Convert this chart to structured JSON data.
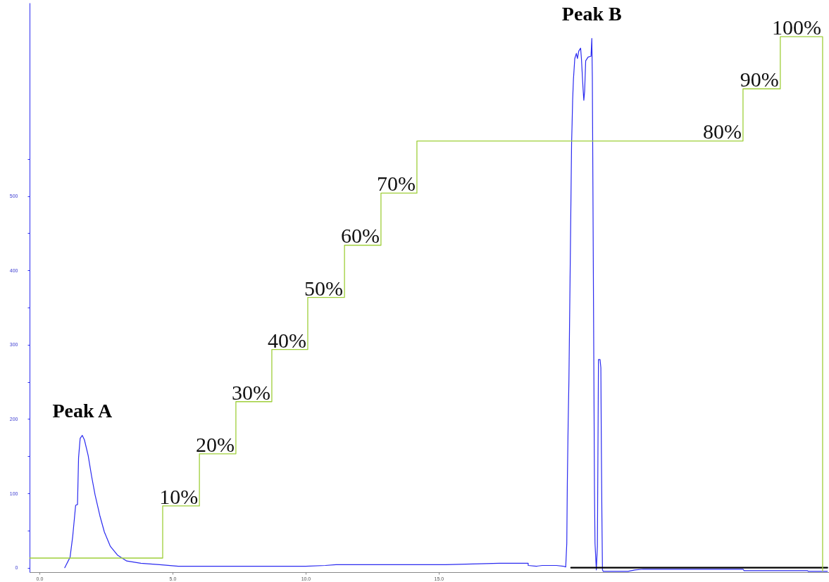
{
  "chart_data": {
    "type": "line",
    "xlim": [
      -0.37,
      29.66
    ],
    "xticks": [
      {
        "value": 0,
        "label": "0.0"
      },
      {
        "value": 5,
        "label": "5.0"
      },
      {
        "value": 10,
        "label": "10.0"
      },
      {
        "value": 15,
        "label": "15.0"
      }
    ],
    "ylim": [
      -6,
      760
    ],
    "yticks": [
      0,
      100,
      200,
      300,
      400,
      500,
      {
        "value": 50,
        "label": null
      },
      {
        "value": 150,
        "label": null
      },
      {
        "value": 250,
        "label": null
      },
      {
        "value": 350,
        "label": null
      },
      {
        "value": 450,
        "label": null
      },
      {
        "value": 550,
        "label": null
      }
    ],
    "y2lim": [
      -2.7,
      106.5
    ],
    "annotations": [
      {
        "text": "Peak A",
        "x": 1.61,
        "y": 178
      },
      {
        "text": "Peak B",
        "x": 20.75,
        "y": 712
      }
    ],
    "series": [
      {
        "color": "#2b2bf0",
        "x": [
          0.95,
          1.15,
          1.25,
          1.36,
          1.43,
          1.47,
          1.53,
          1.61,
          1.69,
          1.83,
          1.96,
          2.09,
          2.27,
          2.44,
          2.66,
          2.93,
          3.28,
          3.81,
          4.52,
          5.22,
          10.0,
          10.74,
          11.14,
          12.8,
          15.26,
          17.28,
          18.36,
          18.36,
          18.67,
          18.89,
          19.42,
          19.68,
          19.77,
          19.81,
          19.83,
          19.86,
          19.89,
          19.91,
          19.99,
          20.01,
          20.03,
          20.06,
          20.11,
          20.17,
          20.21,
          20.26,
          20.33,
          20.36,
          20.42,
          20.45,
          20.48,
          20.52,
          20.61,
          20.72,
          20.75,
          20.77,
          20.78,
          20.85,
          20.87,
          20.92,
          20.96,
          20.98,
          21.0,
          21.06,
          21.09,
          21.11,
          21.13,
          21.15,
          21.18,
          22.11,
          22.37,
          22.68,
          26.43,
          26.47,
          28.85,
          28.89,
          29.6
        ],
        "values": [
          0,
          14,
          42,
          84,
          85,
          148,
          174,
          178,
          172,
          151,
          123,
          98,
          70,
          48,
          29,
          17,
          9,
          6,
          4,
          2,
          2,
          3,
          4,
          4,
          4,
          6,
          6,
          3,
          2,
          3,
          3,
          2,
          1,
          33,
          113,
          191,
          252,
          315,
          570,
          598,
          629,
          657,
          685,
          692,
          685,
          695,
          699,
          685,
          645,
          629,
          641,
          682,
          687,
          688,
          712,
          660,
          592,
          104,
          33,
          -3,
          29,
          154,
          280,
          280,
          269,
          154,
          67,
          -3,
          -5,
          -5,
          -3,
          -2,
          -2,
          -4,
          -4,
          -5,
          -5
        ]
      },
      {
        "color": "#000000",
        "x": [
          19.97,
          29.6
        ],
        "values": [
          0,
          0
        ]
      },
      {
        "type": "step",
        "axis": "y2",
        "color": "#9fcf3a",
        "x": [
          -0.37,
          4.63,
          6.01,
          7.38,
          8.73,
          10.08,
          11.46,
          12.83,
          14.18,
          26.43,
          27.83,
          29.42,
          29.42
        ],
        "values": [
          0,
          0,
          10,
          20,
          30,
          40,
          50,
          60,
          70,
          80,
          90,
          100,
          -2.5
        ],
        "value_labels": [
          null,
          null,
          "10%",
          "20%",
          "30%",
          "40%",
          "50%",
          "60%",
          "70%",
          "80%",
          "90%",
          "100%",
          null
        ]
      }
    ]
  }
}
